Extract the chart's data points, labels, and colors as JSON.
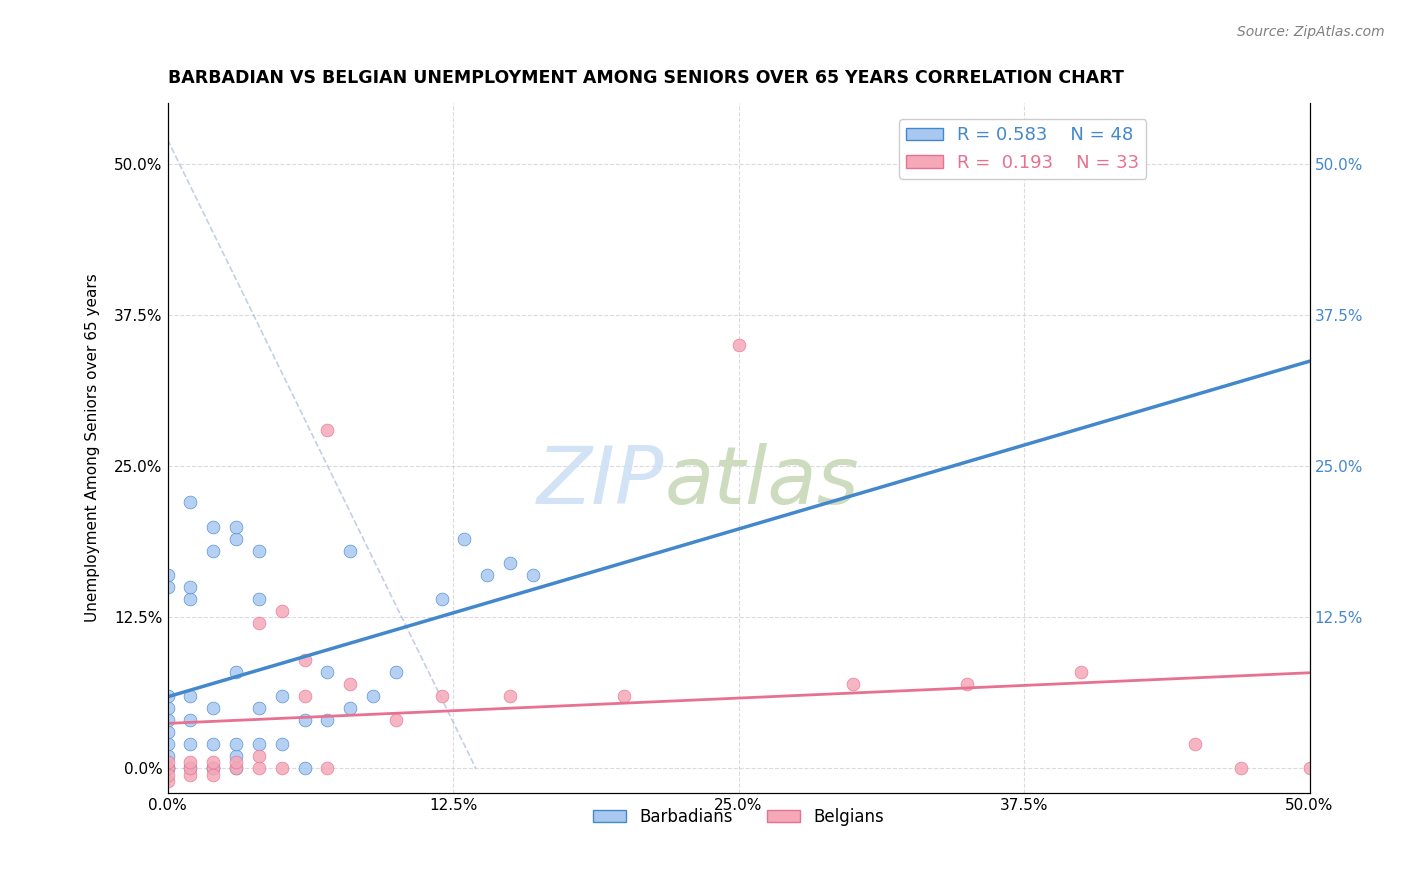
{
  "title": "BARBADIAN VS BELGIAN UNEMPLOYMENT AMONG SENIORS OVER 65 YEARS CORRELATION CHART",
  "source": "Source: ZipAtlas.com",
  "ylabel": "Unemployment Among Seniors over 65 years",
  "xlim": [
    0.0,
    0.5
  ],
  "ylim": [
    -0.02,
    0.55
  ],
  "barbadian_R": "0.583",
  "barbadian_N": "48",
  "belgian_R": "0.193",
  "belgian_N": "33",
  "barbadian_color": "#a8c8f0",
  "belgian_color": "#f4a8b8",
  "barbadian_line_color": "#4488cc",
  "belgian_line_color": "#e87090",
  "barbadian_scatter": [
    [
      0.0,
      0.0
    ],
    [
      0.0,
      0.01
    ],
    [
      0.0,
      0.02
    ],
    [
      0.0,
      0.0
    ],
    [
      0.0,
      0.03
    ],
    [
      0.01,
      0.0
    ],
    [
      0.01,
      0.02
    ],
    [
      0.01,
      0.04
    ],
    [
      0.01,
      0.06
    ],
    [
      0.02,
      0.0
    ],
    [
      0.02,
      0.02
    ],
    [
      0.02,
      0.0
    ],
    [
      0.02,
      0.05
    ],
    [
      0.03,
      0.0
    ],
    [
      0.03,
      0.01
    ],
    [
      0.03,
      0.02
    ],
    [
      0.03,
      0.08
    ],
    [
      0.04,
      0.02
    ],
    [
      0.04,
      0.05
    ],
    [
      0.04,
      0.14
    ],
    [
      0.05,
      0.02
    ],
    [
      0.05,
      0.06
    ],
    [
      0.06,
      0.0
    ],
    [
      0.06,
      0.04
    ],
    [
      0.07,
      0.04
    ],
    [
      0.07,
      0.08
    ],
    [
      0.08,
      0.05
    ],
    [
      0.08,
      0.18
    ],
    [
      0.09,
      0.06
    ],
    [
      0.1,
      0.08
    ],
    [
      0.12,
      0.14
    ],
    [
      0.13,
      0.19
    ],
    [
      0.14,
      0.16
    ],
    [
      0.15,
      0.17
    ],
    [
      0.16,
      0.16
    ],
    [
      0.01,
      0.22
    ],
    [
      0.02,
      0.2
    ],
    [
      0.03,
      0.19
    ],
    [
      0.02,
      0.18
    ],
    [
      0.03,
      0.2
    ],
    [
      0.04,
      0.18
    ],
    [
      0.0,
      0.15
    ],
    [
      0.0,
      0.16
    ],
    [
      0.01,
      0.14
    ],
    [
      0.01,
      0.15
    ],
    [
      0.0,
      0.04
    ],
    [
      0.0,
      0.05
    ],
    [
      0.0,
      0.06
    ]
  ],
  "belgian_scatter": [
    [
      0.0,
      0.0
    ],
    [
      0.0,
      -0.01
    ],
    [
      0.0,
      -0.005
    ],
    [
      0.0,
      0.005
    ],
    [
      0.01,
      -0.005
    ],
    [
      0.01,
      0.0
    ],
    [
      0.01,
      0.005
    ],
    [
      0.02,
      0.0
    ],
    [
      0.02,
      -0.005
    ],
    [
      0.02,
      0.005
    ],
    [
      0.03,
      0.0
    ],
    [
      0.03,
      0.005
    ],
    [
      0.04,
      0.0
    ],
    [
      0.04,
      0.01
    ],
    [
      0.04,
      0.12
    ],
    [
      0.05,
      0.0
    ],
    [
      0.05,
      0.13
    ],
    [
      0.06,
      0.06
    ],
    [
      0.06,
      0.09
    ],
    [
      0.07,
      0.0
    ],
    [
      0.07,
      0.28
    ],
    [
      0.08,
      0.07
    ],
    [
      0.1,
      0.04
    ],
    [
      0.12,
      0.06
    ],
    [
      0.15,
      0.06
    ],
    [
      0.2,
      0.06
    ],
    [
      0.25,
      0.35
    ],
    [
      0.3,
      0.07
    ],
    [
      0.35,
      0.07
    ],
    [
      0.4,
      0.08
    ],
    [
      0.45,
      0.02
    ],
    [
      0.47,
      0.0
    ],
    [
      0.5,
      0.0
    ]
  ],
  "background_color": "#ffffff",
  "grid_color": "#cccccc",
  "ref_line_x": [
    0.0,
    0.135
  ],
  "ref_line_y": [
    0.52,
    0.0
  ],
  "watermark_zip_color": "#cde0f5",
  "watermark_atlas_color": "#c8d8b8"
}
